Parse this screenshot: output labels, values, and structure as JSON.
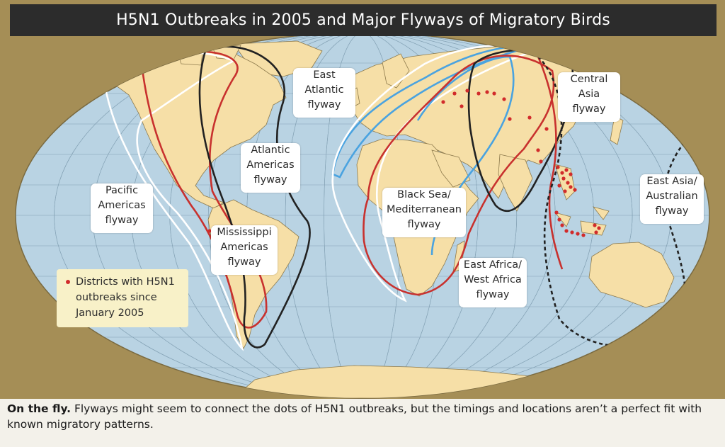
{
  "title": "H5N1 Outbreaks in 2005 and Major Flyways of Migratory Birds",
  "flyways": [
    {
      "name": "Pacific Americas flyway",
      "lines": [
        "Pacific",
        "Americas",
        "flyway"
      ],
      "color": "#ffffff",
      "style": "solid"
    },
    {
      "name": "Mississippi Americas flyway",
      "lines": [
        "Mississippi",
        "Americas",
        "flyway"
      ],
      "color": "#c8312e",
      "style": "solid"
    },
    {
      "name": "Atlantic Americas flyway",
      "lines": [
        "Atlantic",
        "Americas",
        "flyway"
      ],
      "color": "#222222",
      "style": "solid"
    },
    {
      "name": "East Atlantic flyway",
      "lines": [
        "East",
        "Atlantic",
        "flyway"
      ],
      "color": "#4aa3e0",
      "style": "solid"
    },
    {
      "name": "Black Sea/Mediterranean flyway",
      "lines": [
        "Black Sea/",
        "Mediterranean",
        "flyway"
      ],
      "color": "#4aa3e0",
      "style": "solid"
    },
    {
      "name": "East Africa/West Africa flyway",
      "lines": [
        "East Africa/",
        "West Africa",
        "flyway"
      ],
      "color": "#c8312e",
      "style": "solid"
    },
    {
      "name": "Central Asia flyway",
      "lines": [
        "Central",
        "Asia",
        "flyway"
      ],
      "color": "#222222",
      "style": "solid"
    },
    {
      "name": "East Asia/Australian flyway",
      "lines": [
        "East Asia/",
        "Australian",
        "flyway"
      ],
      "color": "#222222",
      "style": "dashed"
    }
  ],
  "legend": {
    "lines": [
      "Districts with H5N1",
      "outbreaks since",
      "January 2005"
    ],
    "marker_color": "#d12b2b"
  },
  "caption": {
    "bold": "On the fly.",
    "text": " Flyways might seem to connect the dots of H5N1 outbreaks, but the timings and locations aren’t a perfect fit with known migratory patterns."
  },
  "colors": {
    "ocean": "#b9d3e3",
    "land": "#f6dfa7",
    "frame": "#a58e56",
    "title_bar": "#2c2c2c",
    "outbreak": "#d12b2b"
  }
}
